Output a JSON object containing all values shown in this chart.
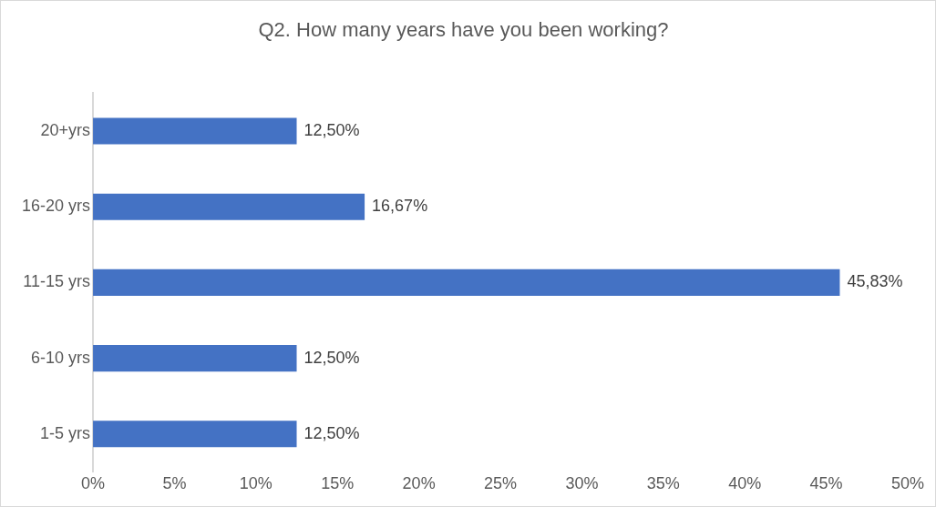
{
  "chart_data": {
    "type": "bar",
    "orientation": "horizontal",
    "title": "Q2. How many years have you been working?",
    "categories": [
      "20+yrs",
      "16-20 yrs",
      "11-15 yrs",
      "6-10 yrs",
      "1-5 yrs"
    ],
    "values": [
      12.5,
      16.67,
      45.83,
      12.5,
      12.5
    ],
    "color": "#4472c4",
    "value_labels": [
      "12,50%",
      "16,67%",
      "45,83%",
      "12,50%",
      "12,50%"
    ],
    "xlim": [
      0,
      50
    ],
    "xticks": [
      {
        "value": 0,
        "label": "0%"
      },
      {
        "value": 5,
        "label": "5%"
      },
      {
        "value": 10,
        "label": "10%"
      },
      {
        "value": 15,
        "label": "15%"
      },
      {
        "value": 20,
        "label": "20%"
      },
      {
        "value": 25,
        "label": "25%"
      },
      {
        "value": 30,
        "label": "30%"
      },
      {
        "value": 35,
        "label": "35%"
      },
      {
        "value": 40,
        "label": "40%"
      },
      {
        "value": 45,
        "label": "45%"
      },
      {
        "value": 50,
        "label": "50%"
      }
    ],
    "grid": false,
    "legend": false
  }
}
